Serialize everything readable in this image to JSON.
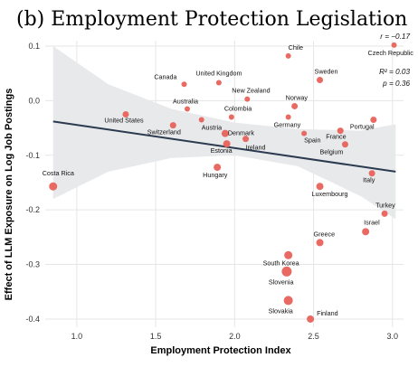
{
  "chart_data": {
    "type": "scatter",
    "title": "(b) Employment Protection Legislation",
    "xlabel": "Employment Protection Index",
    "ylabel": "Effect of LLM Exposure on Log Job Postings",
    "xlim": [
      0.8,
      3.07
    ],
    "ylim": [
      -0.415,
      0.11
    ],
    "xticks": [
      {
        "v": 1.0,
        "label": "1.0"
      },
      {
        "v": 1.5,
        "label": "1.5"
      },
      {
        "v": 2.0,
        "label": "2.0"
      },
      {
        "v": 2.5,
        "label": "2.5"
      },
      {
        "v": 3.0,
        "label": "3.0"
      }
    ],
    "yticks": [
      {
        "v": 0.1,
        "label": "0.1"
      },
      {
        "v": 0.0,
        "label": "0.0"
      },
      {
        "v": -0.1,
        "label": "-0.1"
      },
      {
        "v": -0.2,
        "label": "-0.2"
      },
      {
        "v": -0.3,
        "label": "-0.3"
      },
      {
        "v": -0.4,
        "label": "-0.4"
      }
    ],
    "grid": true,
    "point_color": "#e8625a",
    "line_color": "#2b3a4f",
    "band_color": "#e8e9eb",
    "fit": {
      "x": [
        0.85,
        3.02
      ],
      "y": [
        -0.038,
        -0.13
      ]
    },
    "band": {
      "x": [
        0.85,
        1.2,
        1.6,
        2.0,
        2.4,
        2.8,
        3.02
      ],
      "upper": [
        0.1,
        0.03,
        -0.015,
        -0.04,
        -0.052,
        -0.055,
        -0.043
      ],
      "lower": [
        -0.18,
        -0.13,
        -0.105,
        -0.1,
        -0.12,
        -0.175,
        -0.217
      ]
    },
    "stats": {
      "r": "r = −0.17",
      "r2": "R² = 0.03",
      "p": "p = 0.36"
    },
    "points": [
      {
        "name": "Costa Rica",
        "x": 0.85,
        "y": -0.157,
        "size": 4.5
      },
      {
        "name": "United States",
        "x": 1.31,
        "y": -0.025,
        "size": 3.5
      },
      {
        "name": "Switzerland",
        "x": 1.61,
        "y": -0.045,
        "size": 3.5
      },
      {
        "name": "Canada",
        "x": 1.68,
        "y": 0.03,
        "size": 3
      },
      {
        "name": "Australia",
        "x": 1.7,
        "y": -0.015,
        "size": 3
      },
      {
        "name": "Austria",
        "x": 1.79,
        "y": -0.035,
        "size": 3
      },
      {
        "name": "United Kingdom",
        "x": 1.9,
        "y": 0.033,
        "size": 3
      },
      {
        "name": "Hungary",
        "x": 1.89,
        "y": -0.122,
        "size": 4
      },
      {
        "name": "Denmark",
        "x": 1.94,
        "y": -0.06,
        "size": 4
      },
      {
        "name": "Estonia",
        "x": 1.95,
        "y": -0.079,
        "size": 4
      },
      {
        "name": "Colombia",
        "x": 1.98,
        "y": -0.03,
        "size": 3
      },
      {
        "name": "New Zealand",
        "x": 2.08,
        "y": 0.003,
        "size": 3
      },
      {
        "name": "Ireland",
        "x": 2.07,
        "y": -0.07,
        "size": 3.5
      },
      {
        "name": "Chile",
        "x": 2.34,
        "y": 0.082,
        "size": 3
      },
      {
        "name": "Germany",
        "x": 2.34,
        "y": -0.03,
        "size": 3
      },
      {
        "name": "Norway",
        "x": 2.38,
        "y": -0.01,
        "size": 3.5
      },
      {
        "name": "Spain",
        "x": 2.44,
        "y": -0.06,
        "size": 3
      },
      {
        "name": "Sweden",
        "x": 2.54,
        "y": 0.038,
        "size": 3.5
      },
      {
        "name": "Luxembourg",
        "x": 2.54,
        "y": -0.157,
        "size": 4
      },
      {
        "name": "South Korea",
        "x": 2.34,
        "y": -0.283,
        "size": 4.5
      },
      {
        "name": "Slovenia",
        "x": 2.33,
        "y": -0.313,
        "size": 5.5
      },
      {
        "name": "Slovakia",
        "x": 2.34,
        "y": -0.366,
        "size": 5
      },
      {
        "name": "Finland",
        "x": 2.48,
        "y": -0.4,
        "size": 4
      },
      {
        "name": "Greece",
        "x": 2.54,
        "y": -0.26,
        "size": 4
      },
      {
        "name": "France",
        "x": 2.67,
        "y": -0.055,
        "size": 3.5
      },
      {
        "name": "Belgium",
        "x": 2.7,
        "y": -0.08,
        "size": 3.5
      },
      {
        "name": "Portugal",
        "x": 2.88,
        "y": -0.035,
        "size": 3.5
      },
      {
        "name": "Italy",
        "x": 2.87,
        "y": -0.133,
        "size": 3.5
      },
      {
        "name": "Israel",
        "x": 2.83,
        "y": -0.24,
        "size": 4
      },
      {
        "name": "Turkey",
        "x": 2.95,
        "y": -0.207,
        "size": 3.5
      },
      {
        "name": "Czech Republic",
        "x": 3.01,
        "y": 0.102,
        "size": 3
      }
    ]
  }
}
